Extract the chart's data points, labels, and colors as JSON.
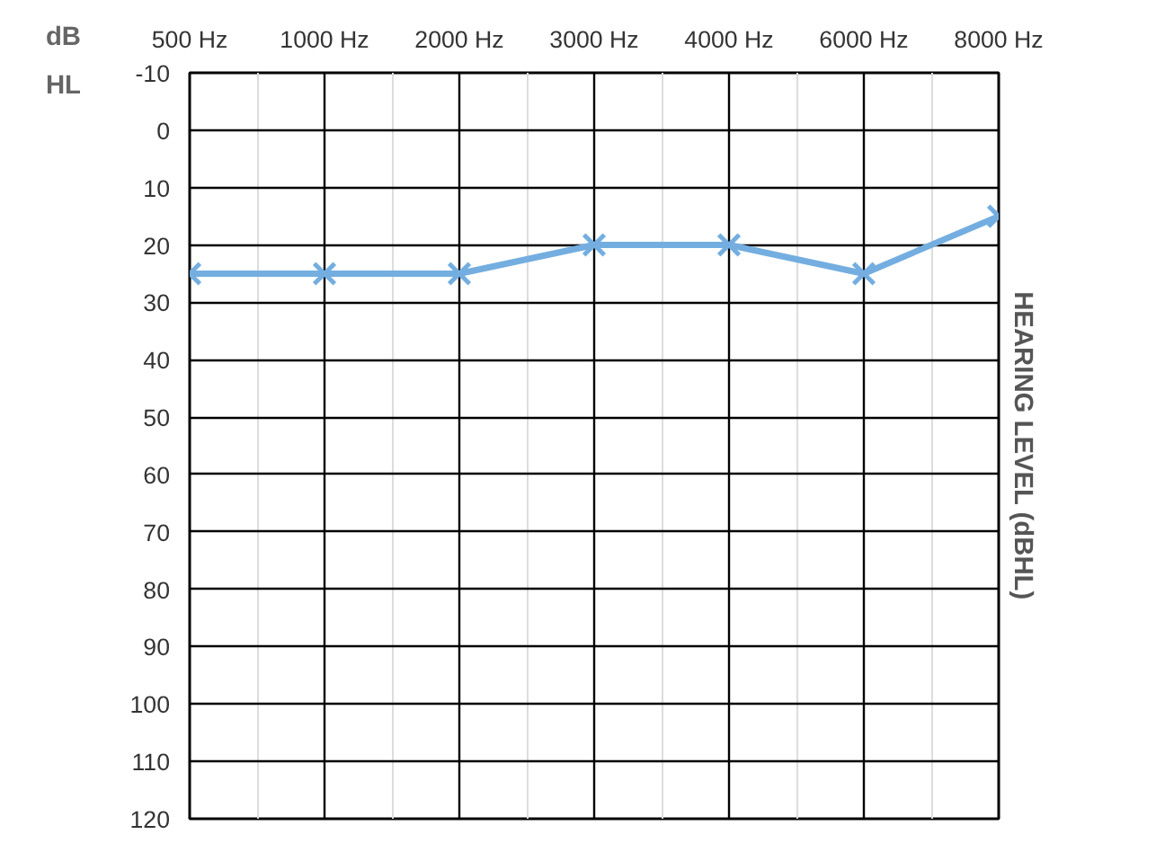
{
  "chart_data": {
    "type": "line",
    "categories": [
      "500 Hz",
      "1000 Hz",
      "2000 Hz",
      "3000 Hz",
      "4000 Hz",
      "6000 Hz",
      "8000 Hz"
    ],
    "series": [
      {
        "color": "#74aee0",
        "values": [
          25,
          25,
          25,
          20,
          20,
          25,
          15
        ]
      }
    ],
    "ylabel": "HEARING LEVEL (dBHL)",
    "annotations": [
      "dB HL"
    ],
    "ylim": [
      120,
      -10
    ],
    "yticks": [
      -10,
      0,
      10,
      20,
      30,
      40,
      50,
      60,
      70,
      80,
      90,
      100,
      110,
      120
    ],
    "grid": true,
    "marker": "cross",
    "line_style": "solid"
  }
}
